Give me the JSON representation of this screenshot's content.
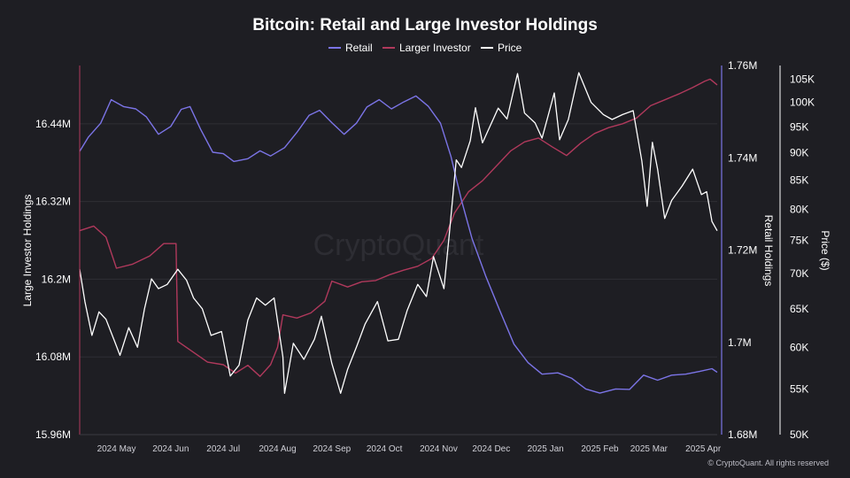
{
  "chart_data": {
    "type": "line",
    "title": "Bitcoin: Retail and Large Investor Holdings",
    "legend": {
      "placement": "top-center"
    },
    "grid": true,
    "watermark": "CryptoQuant",
    "credit": "© CryptoQuant. All rights reserved",
    "x_ticks": [
      "2024 May",
      "2024 Jun",
      "2024 Jul",
      "2024 Aug",
      "2024 Sep",
      "2024 Oct",
      "2024 Nov",
      "2024 Dec",
      "2025 Jan",
      "2025 Feb",
      "2025 Mar",
      "2025 Apr"
    ],
    "x_range": [
      "2024-04-10",
      "2025-04-09"
    ],
    "axes": {
      "left": {
        "label": "Large Investor Holdings",
        "ticks": [
          "16.44M",
          "16.32M",
          "16.2M",
          "16.08M",
          "15.96M"
        ],
        "unit": "millions BTC",
        "scale": "linear",
        "range": [
          15.96,
          16.53
        ],
        "color": "#b0395c"
      },
      "right1": {
        "label": "Retail Holdings",
        "ticks": [
          "1.76M",
          "1.74M",
          "1.72M",
          "1.7M",
          "1.68M"
        ],
        "unit": "millions BTC",
        "scale": "linear",
        "range": [
          1.68,
          1.76
        ],
        "color": "#7b74e6"
      },
      "right2": {
        "label": "Price ($)",
        "ticks": [
          "105K",
          "100K",
          "95K",
          "90K",
          "85K",
          "80K",
          "75K",
          "70K",
          "65K",
          "60K",
          "55K",
          "50K"
        ],
        "unit": "USD (K)",
        "scale": "log",
        "range": [
          50,
          108
        ],
        "color": "#ffffff"
      }
    },
    "series": [
      {
        "name": "Retail",
        "axis": "right1",
        "color": "#7b74e6",
        "points": [
          [
            "2024-04-10",
            1.7414
          ],
          [
            "2024-04-15",
            1.7445
          ],
          [
            "2024-04-22",
            1.7475
          ],
          [
            "2024-04-28",
            1.7526
          ],
          [
            "2024-05-05",
            1.7511
          ],
          [
            "2024-05-12",
            1.7506
          ],
          [
            "2024-05-18",
            1.7489
          ],
          [
            "2024-05-25",
            1.7451
          ],
          [
            "2024-06-01",
            1.7468
          ],
          [
            "2024-06-07",
            1.7505
          ],
          [
            "2024-06-12",
            1.7511
          ],
          [
            "2024-06-18",
            1.7462
          ],
          [
            "2024-06-25",
            1.7412
          ],
          [
            "2024-07-01",
            1.7409
          ],
          [
            "2024-07-07",
            1.7392
          ],
          [
            "2024-07-15",
            1.7398
          ],
          [
            "2024-07-22",
            1.7415
          ],
          [
            "2024-07-28",
            1.7404
          ],
          [
            "2024-08-05",
            1.7422
          ],
          [
            "2024-08-12",
            1.7455
          ],
          [
            "2024-08-19",
            1.7492
          ],
          [
            "2024-08-25",
            1.7503
          ],
          [
            "2024-09-01",
            1.7476
          ],
          [
            "2024-09-08",
            1.7451
          ],
          [
            "2024-09-15",
            1.7475
          ],
          [
            "2024-09-21",
            1.751
          ],
          [
            "2024-09-28",
            1.7526
          ],
          [
            "2024-10-05",
            1.7506
          ],
          [
            "2024-10-12",
            1.7521
          ],
          [
            "2024-10-19",
            1.7534
          ],
          [
            "2024-10-26",
            1.7512
          ],
          [
            "2024-11-02",
            1.7475
          ],
          [
            "2024-11-08",
            1.7403
          ],
          [
            "2024-11-14",
            1.7308
          ],
          [
            "2024-11-20",
            1.7225
          ],
          [
            "2024-11-28",
            1.7142
          ],
          [
            "2024-12-06",
            1.7068
          ],
          [
            "2024-12-14",
            1.6996
          ],
          [
            "2024-12-22",
            1.6956
          ],
          [
            "2024-12-30",
            1.6931
          ],
          [
            "2025-01-08",
            1.6934
          ],
          [
            "2025-01-16",
            1.6922
          ],
          [
            "2025-01-24",
            1.6899
          ],
          [
            "2025-02-01",
            1.689
          ],
          [
            "2025-02-10",
            1.6899
          ],
          [
            "2025-02-18",
            1.6898
          ],
          [
            "2025-02-26",
            1.6929
          ],
          [
            "2025-03-06",
            1.6918
          ],
          [
            "2025-03-14",
            1.6929
          ],
          [
            "2025-03-22",
            1.6931
          ],
          [
            "2025-03-30",
            1.6937
          ],
          [
            "2025-04-06",
            1.6943
          ],
          [
            "2025-04-09",
            1.6935
          ]
        ]
      },
      {
        "name": "Larger Investor",
        "axis": "left",
        "color": "#b0395c",
        "points": [
          [
            "2024-04-10",
            16.275
          ],
          [
            "2024-04-18",
            16.282
          ],
          [
            "2024-04-25",
            16.265
          ],
          [
            "2024-05-01",
            16.217
          ],
          [
            "2024-05-10",
            16.223
          ],
          [
            "2024-05-20",
            16.236
          ],
          [
            "2024-05-28",
            16.255
          ],
          [
            "2024-06-04",
            16.255
          ],
          [
            "2024-06-05",
            16.104
          ],
          [
            "2024-06-14",
            16.087
          ],
          [
            "2024-06-22",
            16.072
          ],
          [
            "2024-07-01",
            16.068
          ],
          [
            "2024-07-08",
            16.055
          ],
          [
            "2024-07-15",
            16.067
          ],
          [
            "2024-07-22",
            16.05
          ],
          [
            "2024-07-28",
            16.068
          ],
          [
            "2024-08-01",
            16.095
          ],
          [
            "2024-08-04",
            16.145
          ],
          [
            "2024-08-12",
            16.14
          ],
          [
            "2024-08-20",
            16.148
          ],
          [
            "2024-08-28",
            16.166
          ],
          [
            "2024-09-01",
            16.197
          ],
          [
            "2024-09-10",
            16.188
          ],
          [
            "2024-09-18",
            16.196
          ],
          [
            "2024-09-26",
            16.198
          ],
          [
            "2024-10-04",
            16.207
          ],
          [
            "2024-10-12",
            16.214
          ],
          [
            "2024-10-20",
            16.22
          ],
          [
            "2024-10-28",
            16.232
          ],
          [
            "2024-11-04",
            16.26
          ],
          [
            "2024-11-10",
            16.302
          ],
          [
            "2024-11-18",
            16.335
          ],
          [
            "2024-11-26",
            16.352
          ],
          [
            "2024-12-04",
            16.375
          ],
          [
            "2024-12-12",
            16.398
          ],
          [
            "2024-12-20",
            16.412
          ],
          [
            "2024-12-28",
            16.418
          ],
          [
            "2025-01-05",
            16.404
          ],
          [
            "2025-01-13",
            16.391
          ],
          [
            "2025-01-21",
            16.41
          ],
          [
            "2025-01-29",
            16.425
          ],
          [
            "2025-02-06",
            16.434
          ],
          [
            "2025-02-14",
            16.44
          ],
          [
            "2025-02-22",
            16.449
          ],
          [
            "2025-03-02",
            16.468
          ],
          [
            "2025-03-10",
            16.477
          ],
          [
            "2025-03-18",
            16.486
          ],
          [
            "2025-03-26",
            16.496
          ],
          [
            "2025-04-02",
            16.506
          ],
          [
            "2025-04-05",
            16.509
          ],
          [
            "2025-04-09",
            16.5
          ]
        ]
      },
      {
        "name": "Price",
        "axis": "right2",
        "color": "#ffffff",
        "points": [
          [
            "2024-04-10",
            70.6
          ],
          [
            "2024-04-13",
            66.0
          ],
          [
            "2024-04-17",
            61.5
          ],
          [
            "2024-04-21",
            64.6
          ],
          [
            "2024-04-25",
            63.6
          ],
          [
            "2024-04-30",
            60.7
          ],
          [
            "2024-05-03",
            59.0
          ],
          [
            "2024-05-08",
            62.5
          ],
          [
            "2024-05-13",
            60.0
          ],
          [
            "2024-05-17",
            65.0
          ],
          [
            "2024-05-21",
            69.2
          ],
          [
            "2024-05-25",
            67.8
          ],
          [
            "2024-05-30",
            68.4
          ],
          [
            "2024-06-05",
            70.6
          ],
          [
            "2024-06-10",
            69.0
          ],
          [
            "2024-06-14",
            66.5
          ],
          [
            "2024-06-19",
            65.0
          ],
          [
            "2024-06-24",
            61.5
          ],
          [
            "2024-06-30",
            62.0
          ],
          [
            "2024-07-05",
            56.5
          ],
          [
            "2024-07-10",
            57.8
          ],
          [
            "2024-07-15",
            63.5
          ],
          [
            "2024-07-20",
            66.5
          ],
          [
            "2024-07-25",
            65.5
          ],
          [
            "2024-07-30",
            66.5
          ],
          [
            "2024-08-04",
            58.8
          ],
          [
            "2024-08-05",
            54.5
          ],
          [
            "2024-08-10",
            60.5
          ],
          [
            "2024-08-16",
            58.5
          ],
          [
            "2024-08-22",
            61.0
          ],
          [
            "2024-08-26",
            64.0
          ],
          [
            "2024-09-01",
            58.0
          ],
          [
            "2024-09-06",
            54.5
          ],
          [
            "2024-09-10",
            57.3
          ],
          [
            "2024-09-15",
            60.0
          ],
          [
            "2024-09-20",
            63.0
          ],
          [
            "2024-09-27",
            66.0
          ],
          [
            "2024-10-03",
            60.8
          ],
          [
            "2024-10-09",
            61.0
          ],
          [
            "2024-10-14",
            64.8
          ],
          [
            "2024-10-20",
            68.4
          ],
          [
            "2024-10-25",
            66.7
          ],
          [
            "2024-10-29",
            72.5
          ],
          [
            "2024-11-04",
            67.8
          ],
          [
            "2024-11-07",
            75.9
          ],
          [
            "2024-11-11",
            88.7
          ],
          [
            "2024-11-14",
            87.3
          ],
          [
            "2024-11-19",
            92.3
          ],
          [
            "2024-11-22",
            98.9
          ],
          [
            "2024-11-26",
            91.9
          ],
          [
            "2024-12-05",
            98.8
          ],
          [
            "2024-12-10",
            96.6
          ],
          [
            "2024-12-16",
            106.2
          ],
          [
            "2024-12-20",
            97.8
          ],
          [
            "2024-12-26",
            95.8
          ],
          [
            "2024-12-30",
            92.8
          ],
          [
            "2025-01-06",
            102.0
          ],
          [
            "2025-01-09",
            92.5
          ],
          [
            "2025-01-14",
            96.5
          ],
          [
            "2025-01-20",
            106.4
          ],
          [
            "2025-01-27",
            100.0
          ],
          [
            "2025-02-03",
            97.5
          ],
          [
            "2025-02-08",
            96.5
          ],
          [
            "2025-02-14",
            97.5
          ],
          [
            "2025-02-20",
            98.3
          ],
          [
            "2025-02-25",
            88.5
          ],
          [
            "2025-02-28",
            80.5
          ],
          [
            "2025-03-03",
            92.0
          ],
          [
            "2025-03-06",
            87.0
          ],
          [
            "2025-03-10",
            78.5
          ],
          [
            "2025-03-14",
            81.5
          ],
          [
            "2025-03-20",
            84.0
          ],
          [
            "2025-03-26",
            87.0
          ],
          [
            "2025-03-31",
            82.5
          ],
          [
            "2025-04-03",
            83.0
          ],
          [
            "2025-04-06",
            78.0
          ],
          [
            "2025-04-09",
            76.5
          ]
        ]
      }
    ]
  }
}
